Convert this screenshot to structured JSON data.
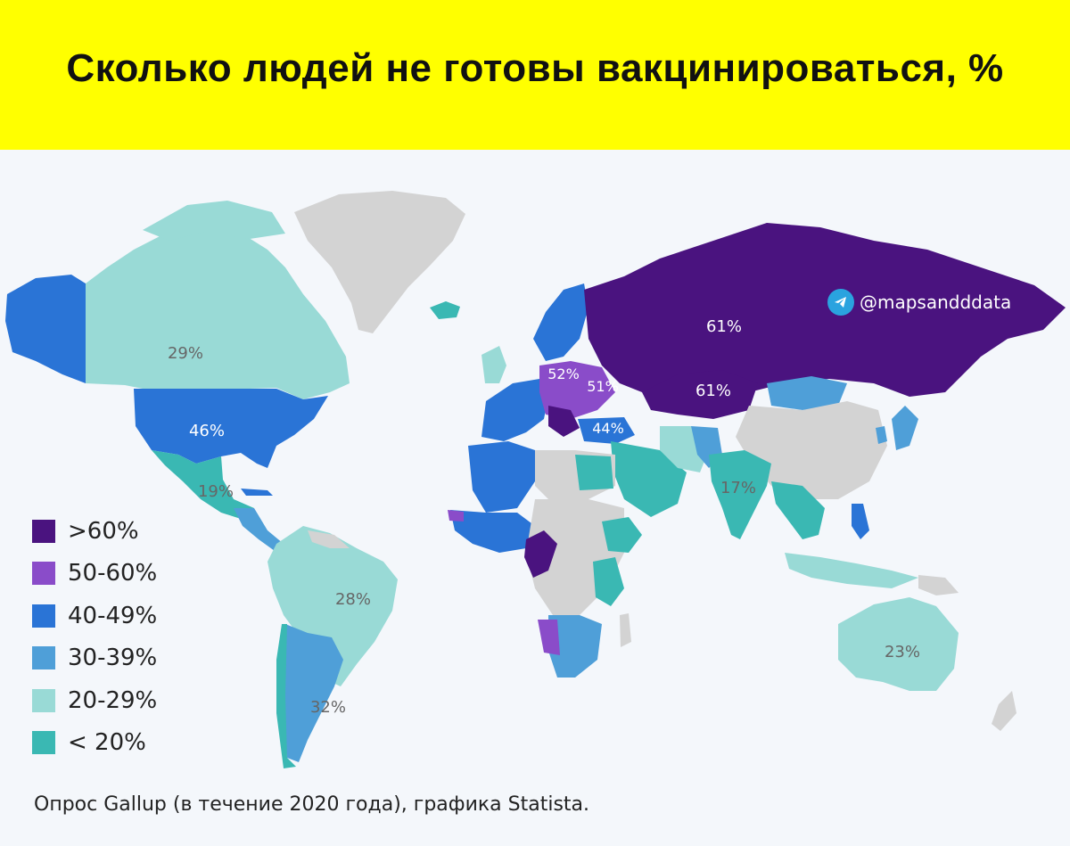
{
  "header": {
    "title": "Сколько людей не готовы вакцинироваться, %"
  },
  "watermark": {
    "handle": "@mapsandddata",
    "icon": "telegram-icon"
  },
  "legend": {
    "items": [
      {
        "label": ">60%",
        "color": "#4a137f"
      },
      {
        "label": "50-60%",
        "color": "#8a4cc9"
      },
      {
        "label": "40-49%",
        "color": "#2a74d6"
      },
      {
        "label": "30-39%",
        "color": "#4f9fd8"
      },
      {
        "label": "20-29%",
        "color": "#99dad6"
      },
      {
        "label": "< 20%",
        "color": "#3ab8b3"
      }
    ]
  },
  "map": {
    "no_data_color": "#d3d3d3",
    "labels": {
      "canada": "29%",
      "usa": "46%",
      "mexico": "19%",
      "brazil": "28%",
      "argentina": "32%",
      "russia": "61%",
      "kazakhstan": "61%",
      "poland": "52%",
      "ukraine": "51%",
      "turkey": "44%",
      "india": "17%",
      "australia": "23%"
    }
  },
  "source": {
    "text": "Опрос Gallup (в течение 2020 года), графика Statista."
  }
}
